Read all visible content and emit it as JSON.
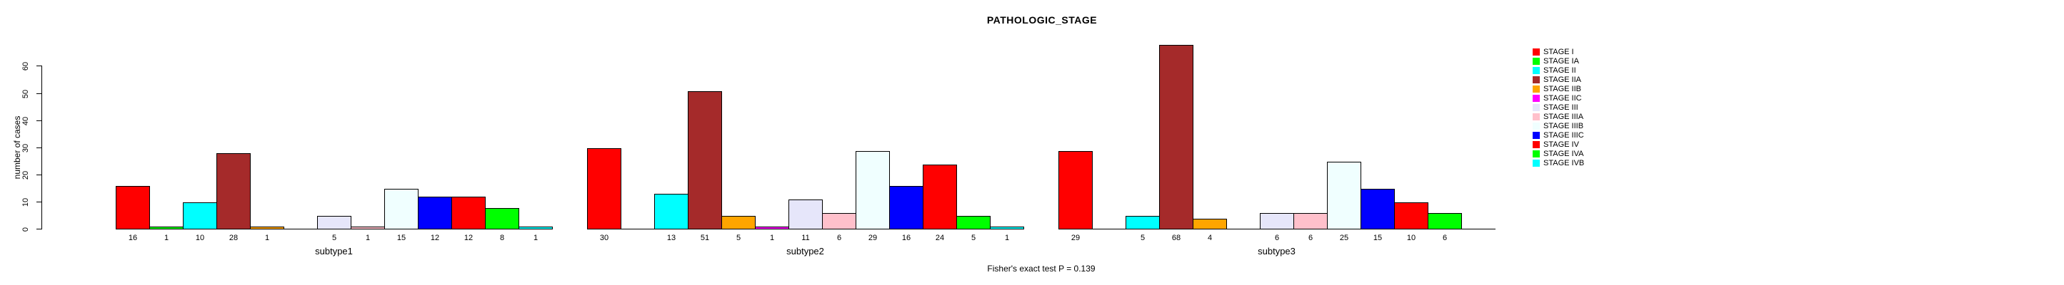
{
  "chart_data": {
    "type": "bar",
    "title": "PATHOLOGIC_STAGE",
    "ylabel": "number of cases",
    "footer": "Fisher's exact test P = 0.139",
    "categories": [
      "subtype1",
      "subtype2",
      "subtype3"
    ],
    "series": [
      {
        "name": "STAGE I",
        "color": "#FF0000",
        "values": [
          16,
          30,
          29
        ]
      },
      {
        "name": "STAGE IA",
        "color": "#00FF00",
        "values": [
          1,
          0,
          0
        ]
      },
      {
        "name": "STAGE II",
        "color": "#00FFFF",
        "values": [
          10,
          13,
          5
        ]
      },
      {
        "name": "STAGE IIA",
        "color": "#A52A2A",
        "values": [
          28,
          51,
          68
        ]
      },
      {
        "name": "STAGE IIB",
        "color": "#FFA500",
        "values": [
          1,
          5,
          4
        ]
      },
      {
        "name": "STAGE IIC",
        "color": "#FF00FF",
        "values": [
          0,
          1,
          0
        ]
      },
      {
        "name": "STAGE III",
        "color": "#E6E6FA",
        "values": [
          5,
          11,
          6
        ]
      },
      {
        "name": "STAGE IIIA",
        "color": "#FFC0CB",
        "values": [
          1,
          6,
          6
        ]
      },
      {
        "name": "STAGE IIIB",
        "color": "#F0FFFF",
        "values": [
          15,
          29,
          25
        ]
      },
      {
        "name": "STAGE IIIC",
        "color": "#0000FF",
        "values": [
          12,
          16,
          15
        ]
      },
      {
        "name": "STAGE IV",
        "color": "#FF0000",
        "values": [
          12,
          24,
          10
        ]
      },
      {
        "name": "STAGE IVA",
        "color": "#00FF00",
        "values": [
          8,
          5,
          6
        ]
      },
      {
        "name": "STAGE IVB",
        "color": "#00FFFF",
        "values": [
          1,
          1,
          0
        ]
      }
    ],
    "yticks": [
      0,
      10,
      20,
      30,
      40,
      50,
      60
    ],
    "ylim": [
      0,
      68
    ],
    "grid": false,
    "legend_position": "right",
    "bar_labels_shown_under_bars": true,
    "zero_value_labels_hidden": true,
    "axis_color": "#000000",
    "bar_border_color": "#000000"
  }
}
